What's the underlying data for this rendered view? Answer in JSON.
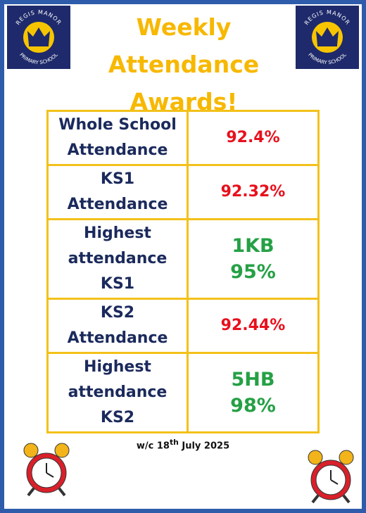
{
  "header": {
    "title_lines": [
      "Weekly",
      "Attendance",
      "Awards!"
    ],
    "logo": {
      "top": "REGIS MANOR",
      "bottom": "PRIMARY SCHOOL"
    }
  },
  "table": {
    "rows": [
      {
        "label": "Whole School Attendance",
        "value": [
          "92.4%"
        ],
        "kind": "percent"
      },
      {
        "label": "KS1 Attendance",
        "value": [
          "92.32%"
        ],
        "kind": "percent"
      },
      {
        "label": "Highest attendance KS1",
        "value": [
          "1KB",
          "95%"
        ],
        "kind": "award"
      },
      {
        "label": "KS2 Attendance",
        "value": [
          "92.44%"
        ],
        "kind": "percent"
      },
      {
        "label": "Highest attendance KS2",
        "value": [
          "5HB",
          "98%"
        ],
        "kind": "award"
      }
    ]
  },
  "footer": {
    "date": [
      "w/c 18",
      "th",
      " July 2025"
    ]
  }
}
